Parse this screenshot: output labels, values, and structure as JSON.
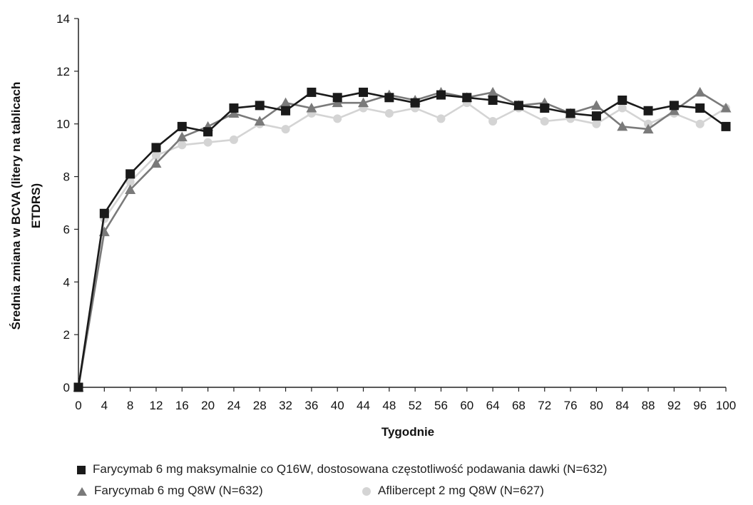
{
  "chart_data": {
    "type": "line",
    "xlabel": "Tygodnie",
    "ylabel": "Średnia  zmiana  w BCVA  (litery na tablicach ETDRS)",
    "ylabel_lines": [
      "Średnia  zmiana  w BCVA  (litery na tablicach",
      "ETDRS)"
    ],
    "xlim": [
      0,
      100
    ],
    "ylim": [
      0,
      14
    ],
    "x_ticks": [
      0,
      4,
      8,
      12,
      16,
      20,
      24,
      28,
      32,
      36,
      40,
      44,
      48,
      52,
      56,
      60,
      64,
      68,
      72,
      76,
      80,
      84,
      88,
      92,
      96,
      100
    ],
    "y_ticks": [
      0,
      2,
      4,
      6,
      8,
      10,
      12,
      14
    ],
    "grid": false,
    "legend_position": "bottom",
    "x": [
      0,
      4,
      8,
      12,
      16,
      20,
      24,
      28,
      32,
      36,
      40,
      44,
      48,
      52,
      56,
      60,
      64,
      68,
      72,
      76,
      80,
      84,
      88,
      92,
      96,
      100
    ],
    "series": [
      {
        "name": "Farycymab 6 mg maksymalnie co Q16W, dostosowana częstotliwość podawania dawki (N=632)",
        "marker": "square",
        "color": "#1a1a1a",
        "values": [
          0.0,
          6.6,
          8.1,
          9.1,
          9.9,
          9.7,
          10.6,
          10.7,
          10.5,
          11.2,
          11.0,
          11.2,
          11.0,
          10.8,
          11.1,
          11.0,
          10.9,
          10.7,
          10.6,
          10.4,
          10.3,
          10.9,
          10.5,
          10.7,
          10.6,
          9.9
        ]
      },
      {
        "name": "Farycymab 6 mg Q8W (N=632)",
        "marker": "triangle",
        "color": "#7a7a7a",
        "values": [
          0.0,
          5.9,
          7.5,
          8.5,
          9.5,
          9.9,
          10.4,
          10.1,
          10.8,
          10.6,
          10.8,
          10.8,
          11.1,
          10.9,
          11.2,
          11.0,
          11.2,
          10.7,
          10.8,
          10.4,
          10.7,
          9.9,
          9.8,
          10.5,
          11.2,
          10.6
        ]
      },
      {
        "name": "Aflibercept 2 mg Q8W (N=627)",
        "marker": "circle",
        "color": "#d4d4d4",
        "values": [
          0.0,
          6.4,
          7.8,
          8.8,
          9.2,
          9.3,
          9.4,
          10.0,
          9.8,
          10.4,
          10.2,
          10.6,
          10.4,
          10.6,
          10.2,
          10.8,
          10.1,
          10.6,
          10.1,
          10.2,
          10.0,
          10.6,
          10.0,
          10.4,
          10.0,
          10.6
        ]
      }
    ]
  },
  "legend": {
    "item1": "Farycymab 6 mg maksymalnie co Q16W, dostosowana częstotliwość podawania dawki (N=632)",
    "item2": "Farycymab 6 mg Q8W (N=632)",
    "item3": "Aflibercept 2 mg Q8W (N=627)"
  }
}
